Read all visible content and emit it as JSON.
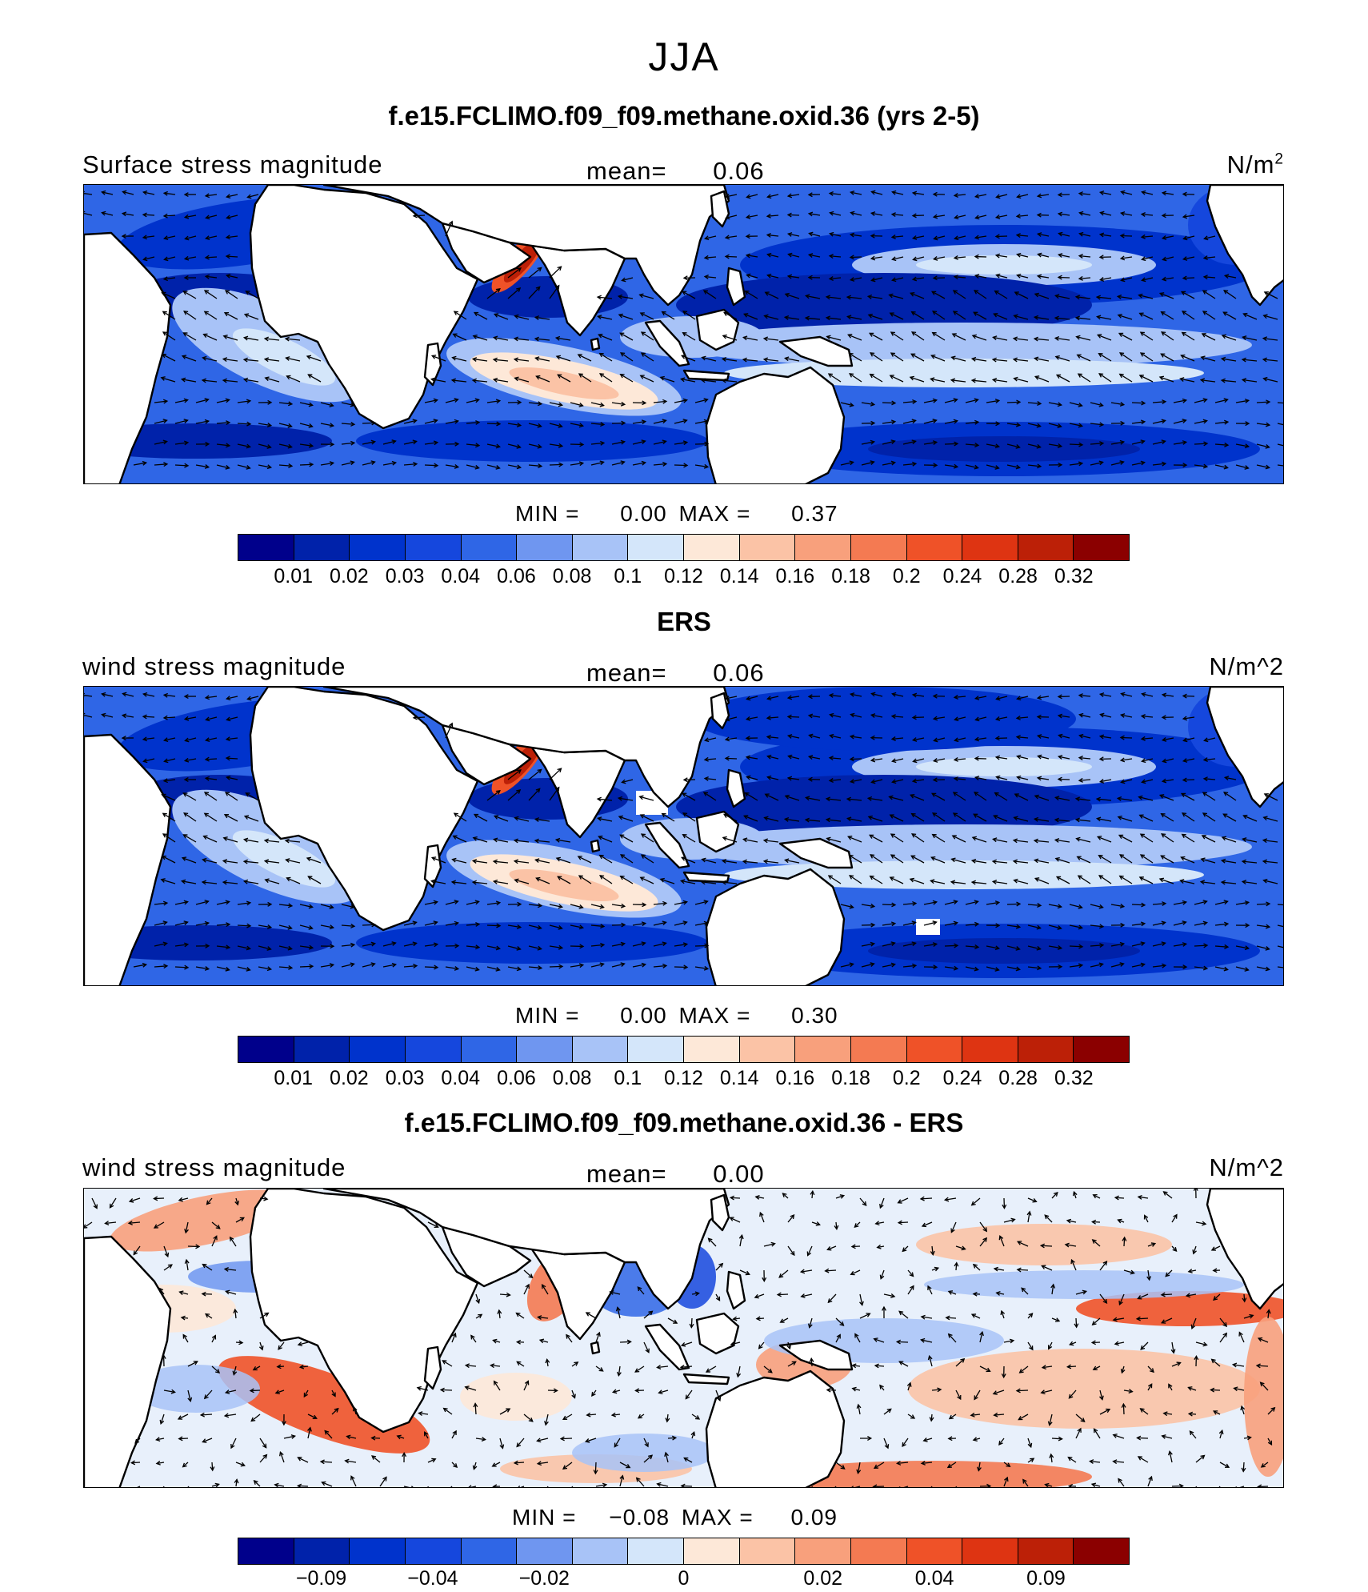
{
  "header": {
    "season": "JJA"
  },
  "colors": {
    "fill_scale": [
      "#00008b",
      "#0022aa",
      "#0033cc",
      "#1547dd",
      "#2f66e6",
      "#6f96f0",
      "#a8c3f7",
      "#d4e6fa",
      "#fde8d8",
      "#fbc3a6",
      "#f8a07c",
      "#f47a52",
      "#ef5228",
      "#de3412",
      "#bc2007",
      "#8b0000"
    ],
    "diff_scale": [
      "#00008b",
      "#0022aa",
      "#0033cc",
      "#1547dd",
      "#2f66e6",
      "#6f96f0",
      "#a8c3f7",
      "#d4e6fa",
      "#fde8d8",
      "#fbc3a6",
      "#f8a07c",
      "#f47a52",
      "#ef5228",
      "#de3412",
      "#bc2007",
      "#8b0000"
    ]
  },
  "panels": [
    {
      "title": "f.e15.FCLIMO.f09_f09.methane.oxid.36 (yrs 2-5)",
      "left_label": "Surface stress magnitude",
      "mean_label": "mean=",
      "mean_value": "0.06",
      "unit_label": "N/m",
      "unit_sup": "2",
      "min_label": "MIN =",
      "min_value": "0.00",
      "max_label": "MAX =",
      "max_value": "0.37",
      "ticks": [
        "0.01",
        "0.02",
        "0.03",
        "0.04",
        "0.06",
        "0.08",
        "0.1",
        "0.12",
        "0.14",
        "0.16",
        "0.18",
        "0.2",
        "0.24",
        "0.28",
        "0.32"
      ]
    },
    {
      "title": "ERS",
      "left_label": "wind stress magnitude",
      "mean_label": "mean=",
      "mean_value": "0.06",
      "unit_label": "N/m^2",
      "min_label": "MIN =",
      "min_value": "0.00",
      "max_label": "MAX =",
      "max_value": "0.30",
      "ticks": [
        "0.01",
        "0.02",
        "0.03",
        "0.04",
        "0.06",
        "0.08",
        "0.1",
        "0.12",
        "0.14",
        "0.16",
        "0.18",
        "0.2",
        "0.24",
        "0.28",
        "0.32"
      ]
    },
    {
      "title": "f.e15.FCLIMO.f09_f09.methane.oxid.36 - ERS",
      "left_label": "wind stress magnitude",
      "mean_label": "mean=",
      "mean_value": "0.00",
      "unit_label": "N/m^2",
      "min_label": "MIN =",
      "min_value": "−0.08",
      "max_label": "MAX =",
      "max_value": "0.09",
      "ticks": [
        "−0.09",
        "−0.04",
        "−0.02",
        "0",
        "0.02",
        "0.04",
        "0.09"
      ]
    }
  ]
}
